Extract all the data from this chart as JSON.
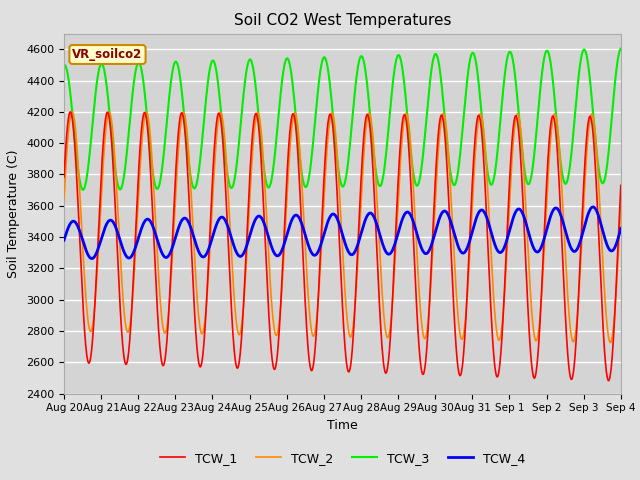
{
  "title": "Soil CO2 West Temperatures",
  "xlabel": "Time",
  "ylabel": "Soil Temperature (C)",
  "ylim": [
    2400,
    4700
  ],
  "yticks": [
    2400,
    2600,
    2800,
    3000,
    3200,
    3400,
    3600,
    3800,
    4000,
    4200,
    4400,
    4600
  ],
  "bg_color": "#e0e0e0",
  "plot_bg_color": "#d4d4d4",
  "legend_label": "VR_soilco2",
  "series_colors": {
    "TCW_1": "#ff0000",
    "TCW_2": "#ff8800",
    "TCW_3": "#00ee00",
    "TCW_4": "#0000ff"
  },
  "date_labels": [
    "Aug 20",
    "Aug 21",
    "Aug 22",
    "Aug 23",
    "Aug 24",
    "Aug 25",
    "Aug 26",
    "Aug 27",
    "Aug 28",
    "Aug 29",
    "Aug 30",
    "Aug 31",
    "Sep 1",
    "Sep 2",
    "Sep 3",
    "Sep 4"
  ],
  "date_ticks": [
    0,
    1,
    2,
    3,
    4,
    5,
    6,
    7,
    8,
    9,
    10,
    11,
    12,
    13,
    14,
    15
  ]
}
